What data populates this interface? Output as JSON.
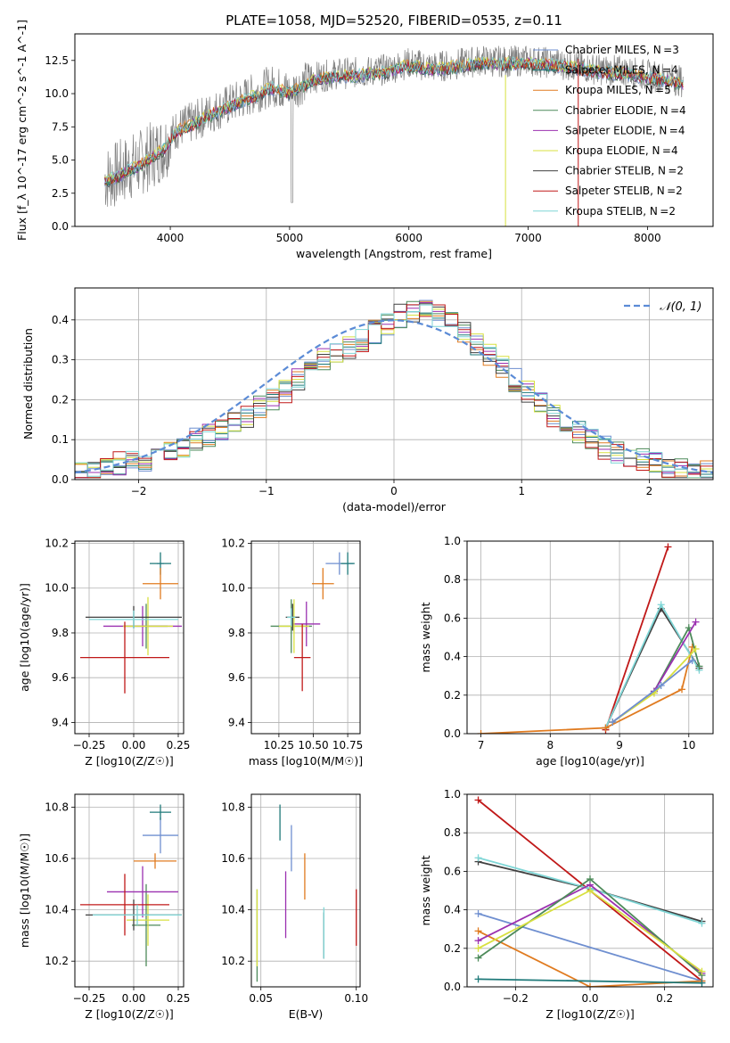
{
  "figure": {
    "title": "PLATE=1058, MJD=52520, FIBERID=0535, z=0.11"
  },
  "legend_entries": [
    {
      "name": "Chabrier MILES, N$_{SSP}$=3",
      "color": "#6f8fd0"
    },
    {
      "name": "Salpeter MILES, N$_{SSP}$=4",
      "color": "#1f7a7a"
    },
    {
      "name": "Kroupa MILES, N$_{SSP}$=5",
      "color": "#e07b20"
    },
    {
      "name": "Chabrier ELODIE, N$_{SSP}$=4",
      "color": "#4d8a5a"
    },
    {
      "name": "Salpeter ELODIE, N$_{SSP}$=4",
      "color": "#9b30b0"
    },
    {
      "name": "Kroupa ELODIE, N$_{SSP}$=4",
      "color": "#d8e040"
    },
    {
      "name": "Chabrier STELIB, N$_{SSP}$=2",
      "color": "#404040"
    },
    {
      "name": "Salpeter STELIB, N$_{SSP}$=2",
      "color": "#c01818"
    },
    {
      "name": "Kroupa STELIB, N$_{SSP}$=2",
      "color": "#7fd6d6"
    }
  ],
  "chart_data": [
    {
      "id": "spectrum",
      "type": "line",
      "title": "PLATE=1058, MJD=52520, FIBERID=0535, z=0.11",
      "xlabel": "wavelength [Angstrom, rest frame]",
      "ylabel": "Flux [f_λ 10^-17 erg cm^-2 s^-1 A^-1]",
      "xlim": [
        3200,
        8550
      ],
      "ylim": [
        0,
        14.5
      ],
      "xticks": [
        4000,
        5000,
        6000,
        7000,
        8000
      ],
      "yticks": [
        0.0,
        2.5,
        5.0,
        7.5,
        10.0,
        12.5
      ],
      "xtick_labels": [
        "4000",
        "5000",
        "6000",
        "7000",
        "8000"
      ],
      "ytick_labels": [
        "0.0",
        "2.5",
        "5.0",
        "7.5",
        "10.0",
        "12.5"
      ],
      "data_x": [
        3450,
        3550,
        3650,
        3750,
        3850,
        3950,
        4050,
        4200,
        4350,
        4500,
        4700,
        4850,
        5000,
        5200,
        5400,
        5600,
        5800,
        6000,
        6200,
        6400,
        6600,
        6800,
        7000,
        7200,
        7400,
        7600,
        7800,
        8000,
        8200,
        8300
      ],
      "data_y": [
        3.6,
        3.9,
        4.4,
        4.8,
        5.4,
        6.0,
        7.3,
        7.9,
        8.6,
        9.2,
        10.0,
        10.6,
        10.2,
        11.2,
        11.5,
        11.6,
        11.8,
        12.3,
        12.0,
        12.2,
        12.5,
        12.4,
        12.5,
        12.3,
        12.1,
        11.8,
        11.7,
        11.4,
        11.1,
        10.9
      ],
      "series": [
        {
          "name": "Chabrier MILES, N$_{SSP}$=3"
        },
        {
          "name": "Salpeter MILES, N$_{SSP}$=4"
        },
        {
          "name": "Kroupa MILES, N$_{SSP}$=5"
        },
        {
          "name": "Chabrier ELODIE, N$_{SSP}$=4"
        },
        {
          "name": "Salpeter ELODIE, N$_{SSP}$=4"
        },
        {
          "name": "Kroupa ELODIE, N$_{SSP}$=4"
        },
        {
          "name": "Chabrier STELIB, N$_{SSP}$=2"
        },
        {
          "name": "Salpeter STELIB, N$_{SSP}$=2"
        },
        {
          "name": "Kroupa STELIB, N$_{SSP}$=2"
        }
      ]
    },
    {
      "id": "residuals",
      "type": "line",
      "xlabel": "(data-model)/error",
      "ylabel": "Normed distribution",
      "xlim": [
        -2.5,
        2.5
      ],
      "ylim": [
        0,
        0.48
      ],
      "xticks": [
        -2,
        -1,
        0,
        1,
        2
      ],
      "yticks": [
        0.0,
        0.1,
        0.2,
        0.3,
        0.4
      ],
      "xtick_labels": [
        "−2",
        "−1",
        "0",
        "1",
        "2"
      ],
      "ytick_labels": [
        "0.0",
        "0.1",
        "0.2",
        "0.3",
        "0.4"
      ],
      "gaussian_label": "𝒩(0, 1)",
      "bin_start": -2.5,
      "bin_width": 0.1,
      "histogram": [
        0.02,
        0.02,
        0.03,
        0.04,
        0.05,
        0.05,
        0.06,
        0.07,
        0.08,
        0.1,
        0.11,
        0.12,
        0.14,
        0.16,
        0.18,
        0.2,
        0.22,
        0.25,
        0.28,
        0.3,
        0.32,
        0.33,
        0.35,
        0.37,
        0.39,
        0.41,
        0.42,
        0.42,
        0.41,
        0.39,
        0.37,
        0.34,
        0.31,
        0.28,
        0.25,
        0.22,
        0.19,
        0.16,
        0.14,
        0.12,
        0.1,
        0.08,
        0.07,
        0.06,
        0.05,
        0.04,
        0.03,
        0.03,
        0.02,
        0.02
      ]
    },
    {
      "id": "age_vs_Z",
      "type": "scatter",
      "xlabel": "Z [log10(Z/Z☉)]",
      "ylabel": "age [log10(age/yr)]",
      "xlim": [
        -0.33,
        0.28
      ],
      "ylim": [
        9.35,
        10.21
      ],
      "xticks": [
        -0.25,
        0.0,
        0.25
      ],
      "yticks": [
        9.4,
        9.6,
        9.8,
        10.0,
        10.2
      ],
      "xtick_labels": [
        "−0.25",
        "0.00",
        "0.25"
      ],
      "ytick_labels": [
        "9.4",
        "9.6",
        "9.8",
        "10.0",
        "10.2"
      ],
      "points": [
        {
          "series": 0,
          "x": 0.15,
          "xerr": 0.02,
          "y": 10.11,
          "yerr": 0.0
        },
        {
          "series": 1,
          "x": 0.15,
          "xerr": 0.06,
          "y": 10.11,
          "yerr": 0.05
        },
        {
          "series": 2,
          "x": 0.15,
          "xerr": 0.1,
          "y": 10.02,
          "yerr": 0.07
        },
        {
          "series": 3,
          "x": 0.07,
          "xerr": 0.12,
          "y": 9.83,
          "yerr": 0.1
        },
        {
          "series": 4,
          "x": 0.05,
          "xerr": 0.22,
          "y": 9.83,
          "yerr": 0.09
        },
        {
          "series": 5,
          "x": 0.08,
          "xerr": 0.14,
          "y": 9.83,
          "yerr": 0.13
        },
        {
          "series": 6,
          "x": 0.0,
          "xerr": 0.27,
          "y": 9.87,
          "yerr": 0.05
        },
        {
          "series": 7,
          "x": -0.05,
          "xerr": 0.25,
          "y": 9.69,
          "yerr": 0.16
        },
        {
          "series": 8,
          "x": 0.0,
          "xerr": 0.25,
          "y": 9.86,
          "yerr": 0.04
        }
      ]
    },
    {
      "id": "age_vs_mass",
      "type": "scatter",
      "xlabel": "mass [log10(M/M☉)]",
      "ylabel": "",
      "xlim": [
        10.05,
        10.84
      ],
      "ylim": [
        9.35,
        10.21
      ],
      "xticks": [
        10.25,
        10.5,
        10.75
      ],
      "yticks": [
        9.4,
        9.6,
        9.8,
        10.0,
        10.2
      ],
      "xtick_labels": [
        "10.25",
        "10.50",
        "10.75"
      ],
      "ytick_labels": [
        "9.4",
        "9.6",
        "9.8",
        "10.0",
        "10.2"
      ],
      "points": [
        {
          "series": 0,
          "x": 10.69,
          "xerr": 0.1,
          "y": 10.11,
          "yerr": 0.05
        },
        {
          "series": 1,
          "x": 10.75,
          "xerr": 0.05,
          "y": 10.11,
          "yerr": 0.05
        },
        {
          "series": 2,
          "x": 10.57,
          "xerr": 0.08,
          "y": 10.02,
          "yerr": 0.07
        },
        {
          "series": 3,
          "x": 10.34,
          "xerr": 0.15,
          "y": 9.83,
          "yerr": 0.12
        },
        {
          "series": 4,
          "x": 10.45,
          "xerr": 0.1,
          "y": 9.84,
          "yerr": 0.1
        },
        {
          "series": 5,
          "x": 10.36,
          "xerr": 0.11,
          "y": 9.83,
          "yerr": 0.12
        },
        {
          "series": 6,
          "x": 10.35,
          "xerr": 0.05,
          "y": 9.87,
          "yerr": 0.06
        },
        {
          "series": 7,
          "x": 10.42,
          "xerr": 0.06,
          "y": 9.69,
          "yerr": 0.15
        },
        {
          "series": 8,
          "x": 10.34,
          "xerr": 0.03,
          "y": 9.87,
          "yerr": 0.04
        }
      ]
    },
    {
      "id": "weight_vs_age",
      "type": "line",
      "xlabel": "age [log10(age/yr)]",
      "ylabel": "mass weight",
      "xlim": [
        6.8,
        10.35
      ],
      "ylim": [
        0,
        1.0
      ],
      "xticks": [
        7,
        8,
        9,
        10
      ],
      "yticks": [
        0.0,
        0.2,
        0.4,
        0.6,
        0.8,
        1.0
      ],
      "xtick_labels": [
        "7",
        "8",
        "9",
        "10"
      ],
      "ytick_labels": [
        "0.0",
        "0.2",
        "0.4",
        "0.6",
        "0.8",
        "1.0"
      ],
      "lines": [
        {
          "series": 7,
          "x": [
            8.8,
            9.7
          ],
          "y": [
            0.02,
            0.97
          ]
        },
        {
          "series": 6,
          "x": [
            8.8,
            9.6,
            10.15
          ],
          "y": [
            0.03,
            0.65,
            0.34
          ]
        },
        {
          "series": 8,
          "x": [
            8.8,
            9.6,
            10.15
          ],
          "y": [
            0.03,
            0.67,
            0.33
          ]
        },
        {
          "series": 2,
          "x": [
            7.0,
            8.8,
            9.9,
            10.05
          ],
          "y": [
            0.0,
            0.03,
            0.23,
            0.45
          ]
        },
        {
          "series": 3,
          "x": [
            8.9,
            9.5,
            10.0,
            10.15
          ],
          "y": [
            0.06,
            0.22,
            0.55,
            0.35
          ]
        },
        {
          "series": 4,
          "x": [
            8.9,
            9.5,
            10.1
          ],
          "y": [
            0.06,
            0.22,
            0.58
          ]
        },
        {
          "series": 5,
          "x": [
            8.9,
            9.5,
            10.1
          ],
          "y": [
            0.06,
            0.21,
            0.44
          ]
        },
        {
          "series": 0,
          "x": [
            8.9,
            9.6,
            10.05
          ],
          "y": [
            0.06,
            0.25,
            0.38
          ]
        }
      ]
    },
    {
      "id": "mass_vs_Z",
      "type": "scatter",
      "xlabel": "Z [log10(Z/Z☉)]",
      "ylabel": "mass [log10(M/M☉)]",
      "xlim": [
        -0.33,
        0.28
      ],
      "ylim": [
        10.1,
        10.85
      ],
      "xticks": [
        -0.25,
        0.0,
        0.25
      ],
      "yticks": [
        10.2,
        10.4,
        10.6,
        10.8
      ],
      "xtick_labels": [
        "−0.25",
        "0.00",
        "0.25"
      ],
      "ytick_labels": [
        "10.2",
        "10.4",
        "10.6",
        "10.8"
      ],
      "points": [
        {
          "series": 0,
          "x": 0.15,
          "xerr": 0.1,
          "y": 10.69,
          "yerr": 0.07
        },
        {
          "series": 1,
          "x": 0.15,
          "xerr": 0.06,
          "y": 10.78,
          "yerr": 0.03
        },
        {
          "series": 2,
          "x": 0.12,
          "xerr": 0.12,
          "y": 10.59,
          "yerr": 0.03
        },
        {
          "series": 3,
          "x": 0.07,
          "xerr": 0.08,
          "y": 10.34,
          "yerr": 0.16
        },
        {
          "series": 4,
          "x": 0.05,
          "xerr": 0.2,
          "y": 10.47,
          "yerr": 0.1
        },
        {
          "series": 5,
          "x": 0.08,
          "xerr": 0.12,
          "y": 10.36,
          "yerr": 0.1
        },
        {
          "series": 6,
          "x": 0.0,
          "xerr": 0.27,
          "y": 10.38,
          "yerr": 0.06
        },
        {
          "series": 7,
          "x": -0.05,
          "xerr": 0.25,
          "y": 10.42,
          "yerr": 0.12
        },
        {
          "series": 8,
          "x": 0.02,
          "xerr": 0.25,
          "y": 10.38,
          "yerr": 0.04
        }
      ]
    },
    {
      "id": "mass_vs_EBV",
      "type": "scatter",
      "xlabel": "E(B-V)",
      "ylabel": "",
      "xlim": [
        0.045,
        0.102
      ],
      "ylim": [
        10.1,
        10.85
      ],
      "xticks": [
        0.05,
        0.1
      ],
      "yticks": [
        10.2,
        10.4,
        10.6,
        10.8
      ],
      "xtick_labels": [
        "0.05",
        "0.10"
      ],
      "ytick_labels": [
        "10.2",
        "10.4",
        "10.6",
        "10.8"
      ],
      "points": [
        {
          "series": 0,
          "x": 0.066,
          "xerr": 0.0,
          "y": 10.64,
          "yerr": 0.09
        },
        {
          "series": 1,
          "x": 0.06,
          "xerr": 0.0,
          "y": 10.74,
          "yerr": 0.07
        },
        {
          "series": 2,
          "x": 0.073,
          "xerr": 0.0,
          "y": 10.53,
          "yerr": 0.09
        },
        {
          "series": 3,
          "x": 0.048,
          "xerr": 0.0,
          "y": 10.3,
          "yerr": 0.18
        },
        {
          "series": 4,
          "x": 0.063,
          "xerr": 0.0,
          "y": 10.42,
          "yerr": 0.13
        },
        {
          "series": 5,
          "x": 0.048,
          "xerr": 0.0,
          "y": 10.33,
          "yerr": 0.15
        },
        {
          "series": 6,
          "x": 0.083,
          "xerr": 0.0,
          "y": 10.3,
          "yerr": 0.09
        },
        {
          "series": 7,
          "x": 0.1,
          "xerr": 0.0,
          "y": 10.37,
          "yerr": 0.11
        },
        {
          "series": 8,
          "x": 0.083,
          "xerr": 0.0,
          "y": 10.31,
          "yerr": 0.1
        }
      ]
    },
    {
      "id": "weight_vs_Z",
      "type": "line",
      "xlabel": "Z [log10(Z/Z☉)]",
      "ylabel": "mass weight",
      "xlim": [
        -0.33,
        0.33
      ],
      "ylim": [
        0,
        1.0
      ],
      "xticks": [
        -0.2,
        0.0,
        0.2
      ],
      "yticks": [
        0.0,
        0.2,
        0.4,
        0.6,
        0.8,
        1.0
      ],
      "xtick_labels": [
        "−0.2",
        "0.0",
        "0.2"
      ],
      "ytick_labels": [
        "0.0",
        "0.2",
        "0.4",
        "0.6",
        "0.8",
        "1.0"
      ],
      "lines": [
        {
          "series": 7,
          "x": [
            -0.3,
            0.3
          ],
          "y": [
            0.97,
            0.03
          ]
        },
        {
          "series": 6,
          "x": [
            -0.3,
            0.0,
            0.3
          ],
          "y": [
            0.65,
            0.51,
            0.34
          ]
        },
        {
          "series": 8,
          "x": [
            -0.3,
            0.0,
            0.3
          ],
          "y": [
            0.67,
            0.51,
            0.33
          ]
        },
        {
          "series": 0,
          "x": [
            -0.3,
            0.3
          ],
          "y": [
            0.38,
            0.03
          ]
        },
        {
          "series": 2,
          "x": [
            -0.3,
            0.0,
            0.3
          ],
          "y": [
            0.29,
            0.0,
            0.03
          ]
        },
        {
          "series": 4,
          "x": [
            -0.3,
            0.0,
            0.3
          ],
          "y": [
            0.24,
            0.53,
            0.07
          ]
        },
        {
          "series": 3,
          "x": [
            -0.3,
            0.0,
            0.3
          ],
          "y": [
            0.15,
            0.56,
            0.06
          ]
        },
        {
          "series": 5,
          "x": [
            -0.3,
            0.0,
            0.3
          ],
          "y": [
            0.2,
            0.5,
            0.08
          ]
        },
        {
          "series": 1,
          "x": [
            -0.3,
            0.3
          ],
          "y": [
            0.04,
            0.02
          ]
        }
      ]
    }
  ]
}
